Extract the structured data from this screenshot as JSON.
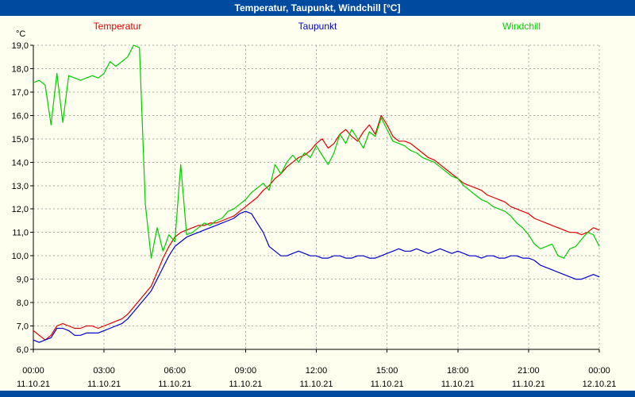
{
  "window": {
    "title": "Temperatur, Taupunkt, Windchill [°C]"
  },
  "legend": {
    "items": [
      {
        "label": "Temperatur",
        "color": "#e00000"
      },
      {
        "label": "Taupunkt",
        "color": "#0000cc"
      },
      {
        "label": "Windchill",
        "color": "#00cc00"
      }
    ]
  },
  "colors": {
    "titlebar": "#004a9f",
    "background": "#fffff0",
    "grid": "#aaaaaa",
    "axis": "#000000",
    "tick_text": "#000000"
  },
  "chart_data": {
    "type": "line",
    "title": "Temperatur, Taupunkt, Windchill [°C]",
    "xlabel": "",
    "ylabel": "°C",
    "ylim": [
      6.0,
      19.0
    ],
    "ytick_values": [
      6,
      7,
      8,
      9,
      10,
      11,
      12,
      13,
      14,
      15,
      16,
      17,
      18,
      19
    ],
    "ytick_labels": [
      "6,0",
      "7,0",
      "8,0",
      "9,0",
      "10,0",
      "11,0",
      "12,0",
      "13,0",
      "14,0",
      "15,0",
      "16,0",
      "17,0",
      "18,0",
      "19,0"
    ],
    "xlim_hours": [
      0,
      24
    ],
    "xtick_hours": [
      0,
      3,
      6,
      9,
      12,
      15,
      18,
      21,
      24
    ],
    "xtick_time_labels": [
      "00:00",
      "03:00",
      "06:00",
      "09:00",
      "12:00",
      "15:00",
      "18:00",
      "21:00",
      "00:00"
    ],
    "xtick_date_labels": [
      "11.10.21",
      "11.10.21",
      "11.10.21",
      "11.10.21",
      "11.10.21",
      "11.10.21",
      "11.10.21",
      "11.10.21",
      "12.10.21"
    ],
    "x_start_hour": 0,
    "x_step_hours": 0.25,
    "grid": true,
    "legend_position": "top",
    "series": [
      {
        "name": "Temperatur",
        "color": "#e00000",
        "values": [
          6.8,
          6.6,
          6.4,
          6.6,
          7.0,
          7.1,
          7.0,
          6.9,
          6.9,
          7.0,
          7.0,
          6.9,
          7.0,
          7.1,
          7.2,
          7.3,
          7.5,
          7.8,
          8.1,
          8.4,
          8.7,
          9.3,
          9.9,
          10.4,
          10.8,
          11.0,
          11.1,
          11.2,
          11.3,
          11.3,
          11.4,
          11.4,
          11.5,
          11.6,
          11.7,
          11.9,
          12.1,
          12.3,
          12.5,
          12.8,
          13.0,
          13.3,
          13.5,
          13.8,
          14.0,
          14.2,
          14.3,
          14.5,
          14.8,
          15.0,
          14.6,
          14.8,
          15.2,
          15.4,
          15.1,
          14.9,
          15.3,
          15.6,
          15.2,
          16.0,
          15.6,
          15.1,
          14.9,
          14.9,
          14.8,
          14.6,
          14.4,
          14.2,
          14.1,
          13.9,
          13.7,
          13.5,
          13.3,
          13.1,
          13.0,
          12.9,
          12.8,
          12.6,
          12.5,
          12.4,
          12.3,
          12.1,
          12.0,
          11.9,
          11.8,
          11.6,
          11.5,
          11.4,
          11.3,
          11.2,
          11.1,
          11.0,
          11.0,
          10.9,
          11.0,
          11.2,
          11.1
        ]
      },
      {
        "name": "Taupunkt",
        "color": "#0000cc",
        "values": [
          6.4,
          6.3,
          6.4,
          6.5,
          6.9,
          6.9,
          6.8,
          6.6,
          6.6,
          6.7,
          6.7,
          6.7,
          6.8,
          6.9,
          7.0,
          7.1,
          7.3,
          7.6,
          7.9,
          8.2,
          8.5,
          9.0,
          9.5,
          10.0,
          10.4,
          10.6,
          10.8,
          10.9,
          11.0,
          11.1,
          11.2,
          11.3,
          11.4,
          11.5,
          11.6,
          11.8,
          11.9,
          11.8,
          11.4,
          11.0,
          10.4,
          10.2,
          10.0,
          10.0,
          10.1,
          10.2,
          10.1,
          10.0,
          10.0,
          9.9,
          9.9,
          10.0,
          10.0,
          9.9,
          9.9,
          10.0,
          10.0,
          9.9,
          9.9,
          10.0,
          10.1,
          10.2,
          10.3,
          10.2,
          10.2,
          10.3,
          10.2,
          10.1,
          10.2,
          10.3,
          10.2,
          10.1,
          10.2,
          10.1,
          10.0,
          10.0,
          9.9,
          10.0,
          10.0,
          9.9,
          9.9,
          10.0,
          10.0,
          9.9,
          9.9,
          9.8,
          9.6,
          9.5,
          9.4,
          9.3,
          9.2,
          9.1,
          9.0,
          9.0,
          9.1,
          9.2,
          9.1
        ]
      },
      {
        "name": "Windchill",
        "color": "#00cc00",
        "values": [
          17.4,
          17.5,
          17.3,
          15.6,
          17.8,
          15.7,
          17.7,
          17.6,
          17.5,
          17.6,
          17.7,
          17.6,
          17.8,
          18.3,
          18.1,
          18.3,
          18.5,
          19.0,
          18.9,
          12.2,
          9.9,
          11.2,
          10.2,
          10.9,
          10.6,
          13.9,
          10.9,
          11.0,
          11.2,
          11.4,
          11.3,
          11.5,
          11.6,
          11.9,
          12.0,
          12.2,
          12.4,
          12.7,
          12.9,
          13.1,
          12.8,
          13.9,
          13.5,
          14.0,
          14.3,
          14.0,
          14.4,
          14.2,
          14.7,
          14.3,
          13.9,
          14.4,
          15.2,
          14.8,
          15.4,
          15.0,
          14.6,
          15.3,
          15.1,
          15.9,
          15.4,
          14.9,
          14.8,
          14.7,
          14.5,
          14.4,
          14.2,
          14.1,
          14.0,
          13.8,
          13.6,
          13.4,
          13.3,
          13.0,
          12.8,
          12.6,
          12.4,
          12.3,
          12.1,
          12.0,
          11.9,
          11.7,
          11.4,
          11.2,
          10.9,
          10.5,
          10.3,
          10.4,
          10.5,
          10.0,
          9.9,
          10.3,
          10.4,
          10.7,
          11.0,
          10.9,
          10.4
        ]
      }
    ]
  }
}
